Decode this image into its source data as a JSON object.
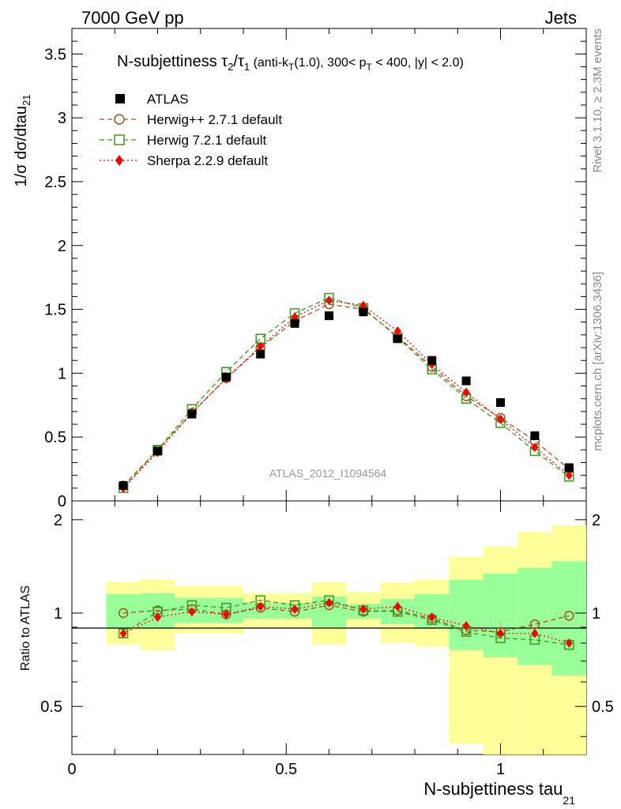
{
  "header": {
    "left": "7000 GeV pp",
    "right": "Jets"
  },
  "side": {
    "rivet": "Rivet 3.1.10, ≥ 2.3M events",
    "mcplots": "mcplots.cern.ch [arXiv:1306.3436]"
  },
  "chart_data": {
    "type": "scatter",
    "title_main": "N-subjettiness τ",
    "title_sub2": "2",
    "title_slash": "/τ",
    "title_sub1": "1",
    "title_paren1": " (anti-k",
    "title_subT": "T",
    "title_paren2": "(1.0), 300< p",
    "title_subT2": "T",
    "title_paren3": " < 400, |y| < 2.0)",
    "watermark": "ATLAS_2012_I1094564",
    "xlabel": "N-subjettiness tau",
    "xlabel_sub": "21",
    "ylabel": "1/σ dσ/dtau",
    "ylabel_sub": "21",
    "ratio_ylabel": "Ratio to ATLAS",
    "xlim": [
      0,
      1.2
    ],
    "ylim": [
      0,
      3.7
    ],
    "ratio_ylim": [
      0.35,
      2.3
    ],
    "x_ticks": [
      "0",
      "0.5",
      "1"
    ],
    "y_ticks": [
      "0",
      "0.5",
      "1",
      "1.5",
      "2",
      "2.5",
      "3",
      "3.5"
    ],
    "ratio_ticks": [
      "0.5",
      "1",
      "2"
    ],
    "x": [
      0.12,
      0.2,
      0.28,
      0.36,
      0.44,
      0.52,
      0.6,
      0.68,
      0.76,
      0.84,
      0.92,
      1.0,
      1.08,
      1.16
    ],
    "bin_edges": [
      0.08,
      0.16,
      0.24,
      0.32,
      0.4,
      0.48,
      0.56,
      0.64,
      0.72,
      0.8,
      0.88,
      0.96,
      1.04,
      1.12,
      1.2
    ],
    "series": [
      {
        "name": "ATLAS",
        "color": "#000000",
        "marker": "square-filled",
        "values": [
          0.12,
          0.39,
          0.68,
          0.97,
          1.15,
          1.39,
          1.45,
          1.48,
          1.27,
          1.1,
          0.94,
          0.77,
          0.51,
          0.26
        ]
      },
      {
        "name": "Herwig++ 2.7.1 default",
        "color": "#a0521d",
        "marker": "circle-open",
        "dash": "6,4",
        "values": [
          0.12,
          0.4,
          0.69,
          0.96,
          1.2,
          1.41,
          1.54,
          1.5,
          1.29,
          1.05,
          0.82,
          0.65,
          0.47,
          0.25
        ]
      },
      {
        "name": "Herwig 7.2.1 default",
        "color": "#3a9a1e",
        "marker": "square-open",
        "dash": "6,4",
        "values": [
          0.1,
          0.4,
          0.72,
          1.01,
          1.27,
          1.47,
          1.59,
          1.51,
          1.28,
          1.03,
          0.8,
          0.61,
          0.39,
          0.19
        ]
      },
      {
        "name": "Sherpa 2.2.9 default",
        "color": "#ff0000",
        "marker": "diamond-filled",
        "dash": "2,3",
        "values": [
          0.1,
          0.38,
          0.69,
          0.96,
          1.21,
          1.44,
          1.57,
          1.53,
          1.33,
          1.07,
          0.85,
          0.64,
          0.42,
          0.2
        ]
      }
    ],
    "ratio_series": [
      {
        "name": "Herwig++ 2.7.1 default",
        "values": [
          1.0,
          1.02,
          1.03,
          0.99,
          1.04,
          1.01,
          1.06,
          1.01,
          1.02,
          0.96,
          0.88,
          0.87,
          0.92,
          0.98
        ]
      },
      {
        "name": "Herwig 7.2.1 default",
        "values": [
          0.86,
          1.01,
          1.06,
          1.04,
          1.1,
          1.06,
          1.1,
          1.02,
          1.01,
          0.95,
          0.87,
          0.83,
          0.82,
          0.79
        ]
      },
      {
        "name": "Sherpa 2.2.9 default",
        "values": [
          0.86,
          0.97,
          1.01,
          0.99,
          1.05,
          1.03,
          1.08,
          1.03,
          1.05,
          0.97,
          0.91,
          0.86,
          0.86,
          0.8
        ]
      }
    ],
    "band_inner": [
      [
        0.89,
        1.15
      ],
      [
        0.89,
        1.16
      ],
      [
        0.93,
        1.12
      ],
      [
        0.93,
        1.12
      ],
      [
        0.96,
        1.08
      ],
      [
        0.96,
        1.08
      ],
      [
        0.9,
        1.13
      ],
      [
        0.96,
        1.07
      ],
      [
        0.92,
        1.11
      ],
      [
        0.89,
        1.15
      ],
      [
        0.76,
        1.28
      ],
      [
        0.72,
        1.34
      ],
      [
        0.68,
        1.4
      ],
      [
        0.63,
        1.47
      ]
    ],
    "band_outer": [
      [
        0.79,
        1.26
      ],
      [
        0.76,
        1.28
      ],
      [
        0.86,
        1.22
      ],
      [
        0.86,
        1.22
      ],
      [
        0.89,
        1.16
      ],
      [
        0.89,
        1.16
      ],
      [
        0.79,
        1.26
      ],
      [
        0.89,
        1.17
      ],
      [
        0.8,
        1.25
      ],
      [
        0.78,
        1.28
      ],
      [
        0.38,
        1.52
      ],
      [
        0.35,
        1.64
      ],
      [
        0.35,
        1.82
      ],
      [
        0.35,
        1.92
      ]
    ]
  }
}
